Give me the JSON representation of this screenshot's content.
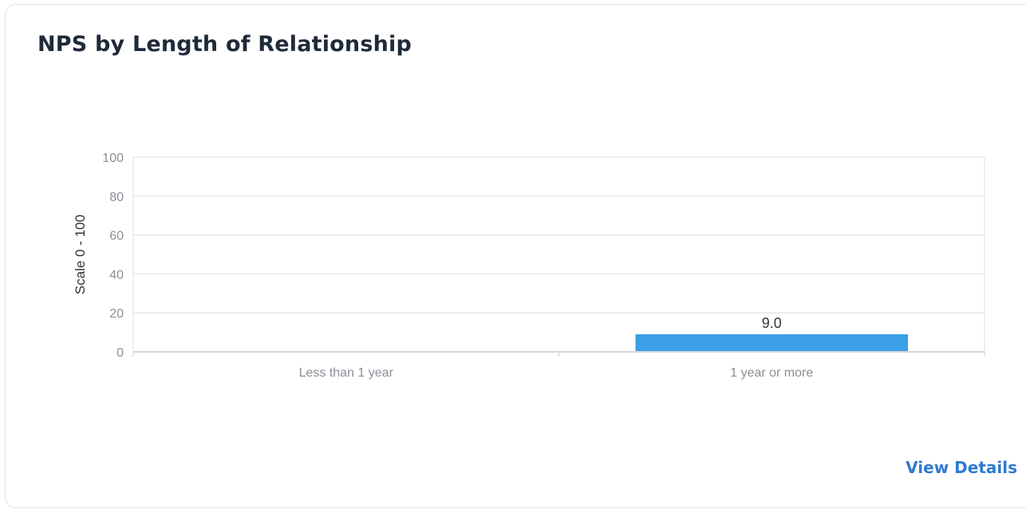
{
  "card": {
    "title": "NPS by Length of Relationship",
    "view_details_label": "View Details"
  },
  "chart_data": {
    "type": "bar",
    "categories": [
      "Less than 1 year",
      "1 year or more"
    ],
    "values": [
      null,
      9.0
    ],
    "data_labels": [
      "",
      "9.0"
    ],
    "ylabel": "Scale 0 - 100",
    "ylim": [
      0,
      100
    ],
    "yticks": [
      0,
      20,
      40,
      60,
      80,
      100
    ],
    "grid": true,
    "legend": "none",
    "bar_color": "#3b9fe6",
    "grid_color": "#e6e6e6",
    "label_color": "#8a8f96"
  }
}
